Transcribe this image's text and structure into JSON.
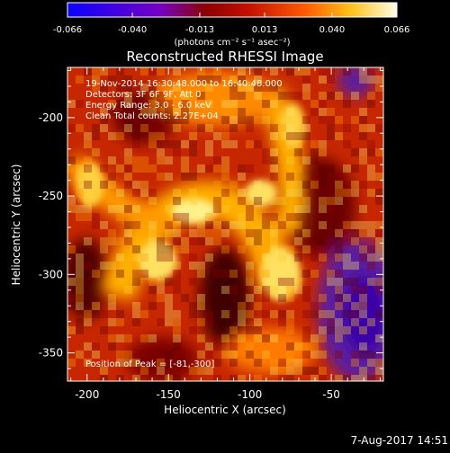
{
  "colorbar": {
    "ticks": [
      "-0.066",
      "-0.040",
      "-0.013",
      "0.013",
      "0.040",
      "0.066"
    ],
    "tick_values": [
      -0.066,
      -0.04,
      -0.013,
      0.013,
      0.04,
      0.066
    ],
    "range": [
      -0.066,
      0.066
    ],
    "units": "(photons cm⁻² s⁻¹ asec⁻²)"
  },
  "plot": {
    "title": "Reconstructed RHESSI Image",
    "xlabel": "Heliocentric X (arcsec)",
    "ylabel": "Heliocentric Y (arcsec)",
    "xrange": [
      -212,
      -18
    ],
    "yrange": [
      -368,
      -168
    ],
    "xticks": [
      "-200",
      "-150",
      "-100",
      "-50"
    ],
    "xtick_values": [
      -200,
      -150,
      -100,
      -50
    ],
    "yticks": [
      "-200",
      "-250",
      "-300",
      "-350"
    ],
    "ytick_values": [
      -200,
      -250,
      -300,
      -350
    ],
    "info_lines": [
      "19-Nov-2014 16:30:48.000 to 16:40:48.000",
      "Detectors: 3F 6F 9F, Att 0",
      "Energy Range: 3.0 - 6.0 keV",
      "Clean    Total counts: 2.27E+04"
    ],
    "peak_text": "Position of Peak = [-81,-300]"
  },
  "footer": {
    "date": "7-Aug-2017 14:51"
  },
  "colors": {
    "colormap": [
      "#0000ff",
      "#6a00c8",
      "#8a0000",
      "#c01000",
      "#ff5000",
      "#ff9a00",
      "#ffd21e",
      "#ffffdc"
    ]
  }
}
